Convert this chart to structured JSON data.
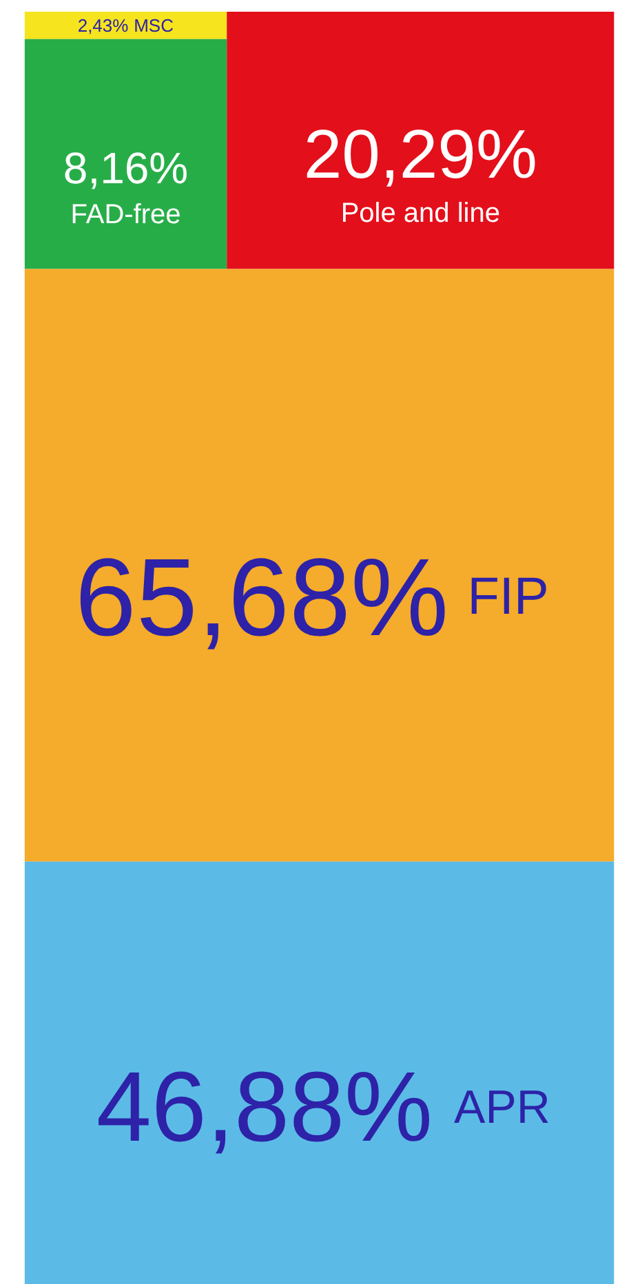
{
  "chart_data": {
    "type": "other",
    "categories": [
      "MSC",
      "FAD-free",
      "Pole and line",
      "FIP",
      "APR"
    ],
    "values": [
      2.43,
      8.16,
      20.29,
      65.68,
      46.88
    ],
    "value_labels": [
      "2,43%",
      "8,16%",
      "20,29%",
      "65,68%",
      "46,88%"
    ],
    "colors": [
      "#f5e41e",
      "#27ad48",
      "#e30f1b",
      "#f5ab2b",
      "#5bbbe6"
    ]
  }
}
